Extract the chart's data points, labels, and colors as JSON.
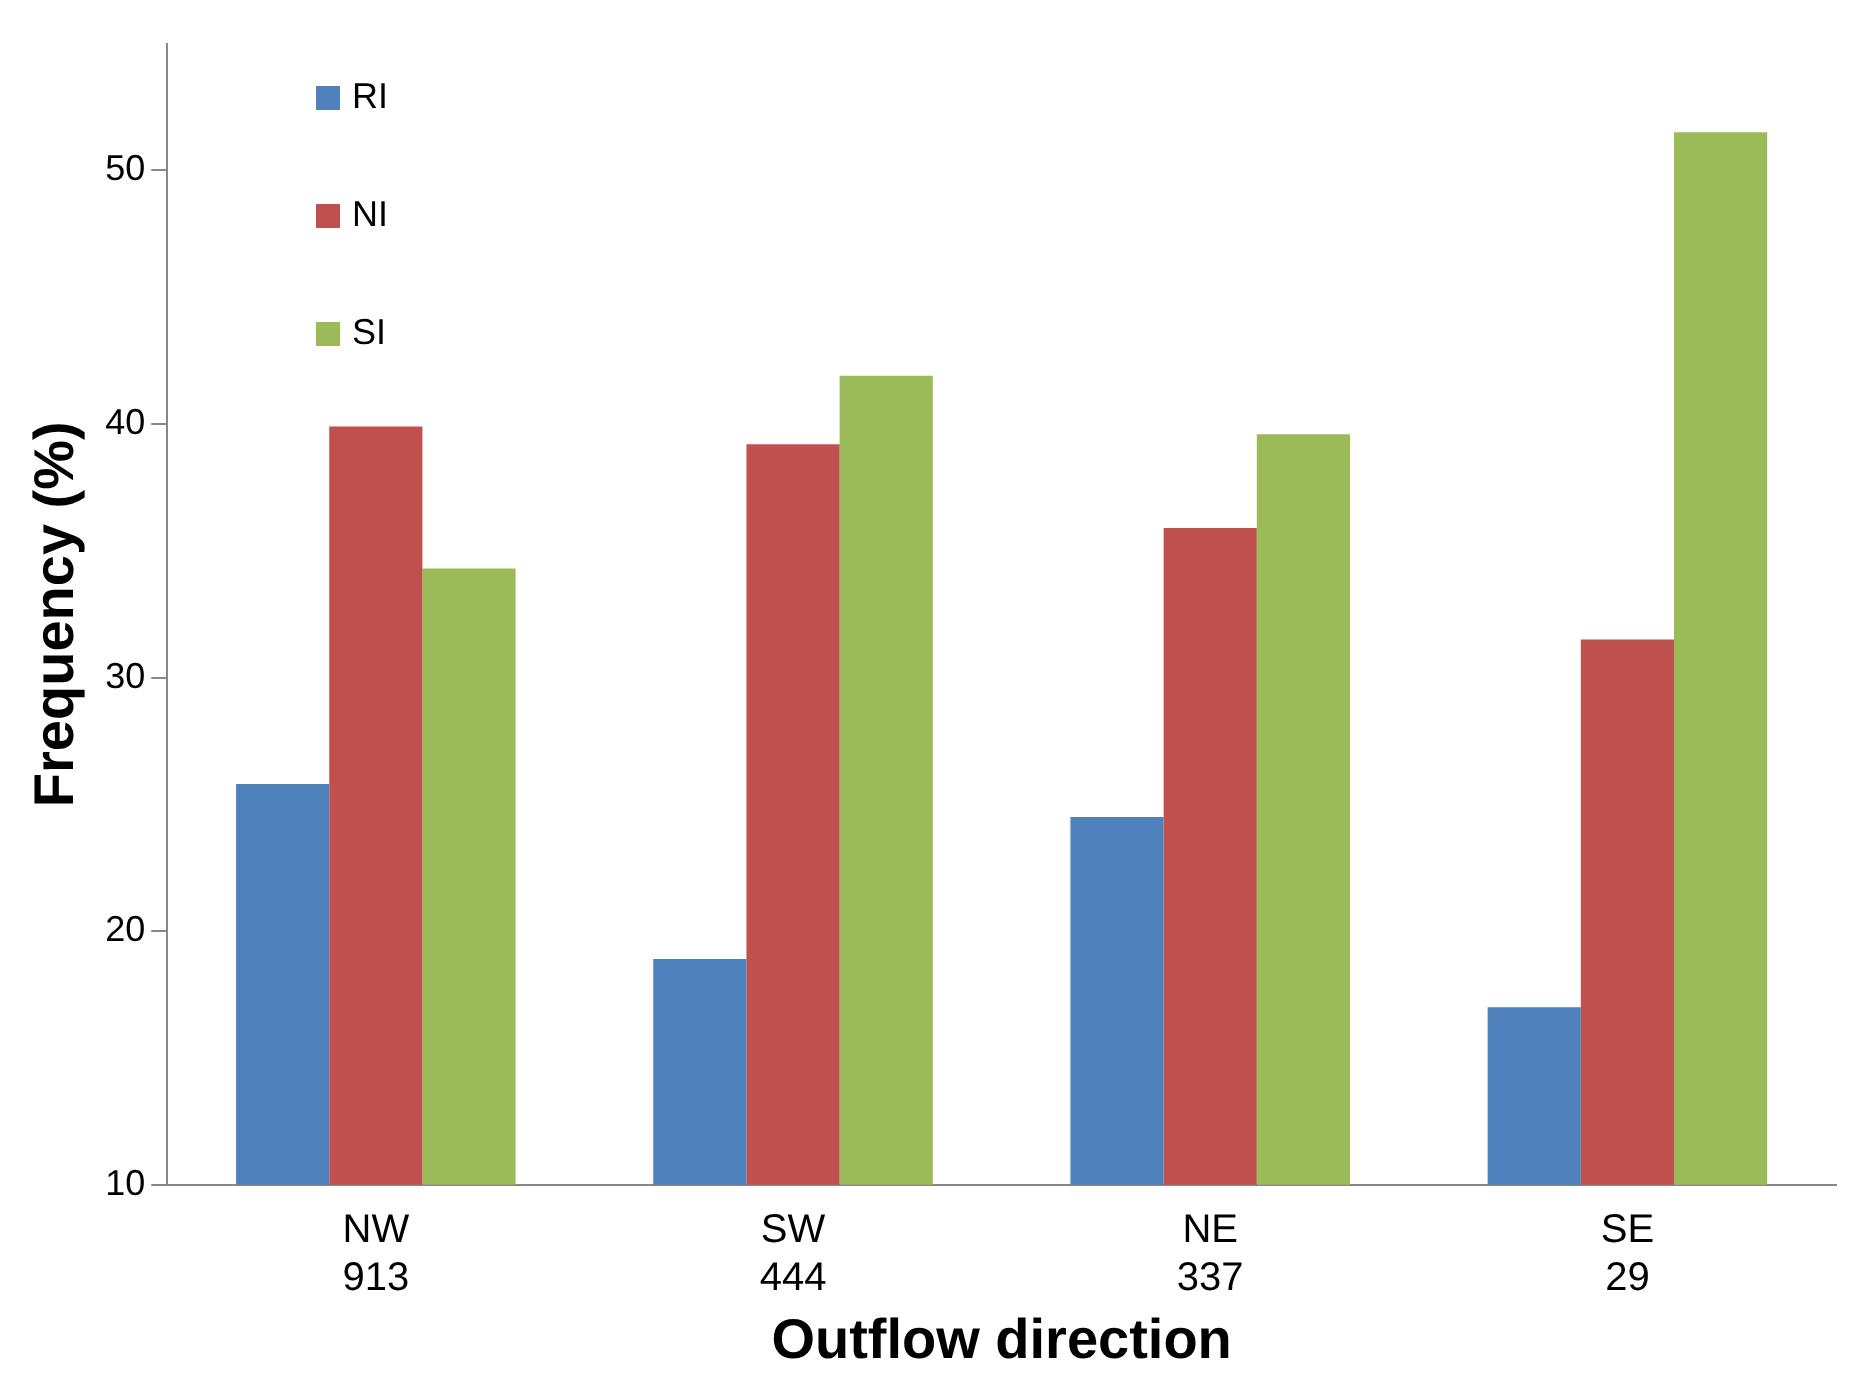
{
  "chart_data": {
    "type": "bar",
    "xlabel": "Outflow direction",
    "ylabel": "Frequency (%)",
    "categories": [
      "NW\n913",
      "SW\n444",
      "NE\n337",
      "SE\n29"
    ],
    "series": [
      {
        "name": "RI",
        "color": "#4f81bd",
        "values": [
          25.8,
          18.9,
          24.5,
          17.0
        ]
      },
      {
        "name": "NI",
        "color": "#c0504d",
        "values": [
          39.9,
          39.2,
          35.9,
          31.5
        ]
      },
      {
        "name": "SI",
        "color": "#9bbb59",
        "values": [
          34.3,
          41.9,
          39.6,
          51.5
        ]
      }
    ],
    "ylim": [
      10,
      55
    ],
    "yticks": [
      10,
      20,
      30,
      40,
      50
    ],
    "grid": false,
    "legend": "top left"
  }
}
